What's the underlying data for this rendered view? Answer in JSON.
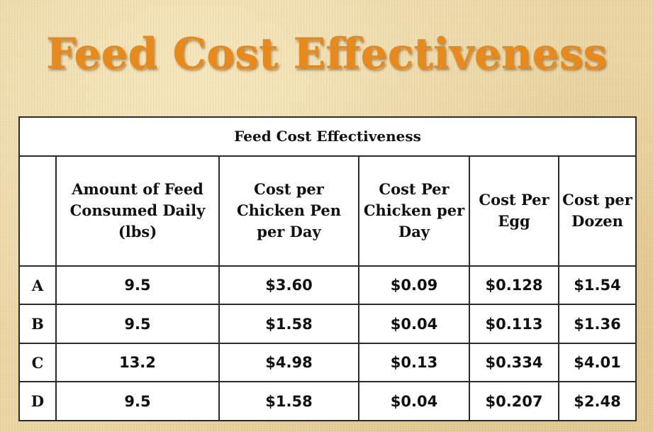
{
  "slide": {
    "title": "Feed Cost Effectiveness"
  },
  "chart_data": {
    "type": "table",
    "title": "Feed Cost Effectiveness",
    "columns": [
      "",
      "Amount of Feed Consumed Daily (lbs)",
      "Cost per Chicken Pen per Day",
      "Cost Per Chicken per Day",
      "Cost Per Egg",
      "Cost per Dozen"
    ],
    "rows": [
      {
        "label": "A",
        "cells": [
          "9.5",
          "$3.60",
          "$0.09",
          "$0.128",
          "$1.54"
        ]
      },
      {
        "label": "B",
        "cells": [
          "9.5",
          "$1.58",
          "$0.04",
          "$0.113",
          "$1.36"
        ]
      },
      {
        "label": "C",
        "cells": [
          "13.2",
          "$4.98",
          "$0.13",
          "$0.334",
          "$4.01"
        ]
      },
      {
        "label": "D",
        "cells": [
          "9.5",
          "$1.58",
          "$0.04",
          "$0.207",
          "$2.48"
        ]
      }
    ]
  },
  "colors": {
    "title": "#e8891c",
    "background": "#ead5a3",
    "table_background": "#ffffff",
    "border": "#2b2b2b"
  }
}
